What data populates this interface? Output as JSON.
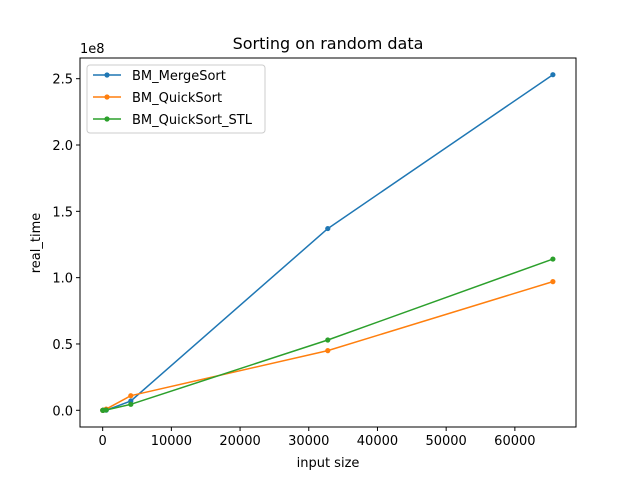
{
  "chart_data": {
    "type": "line",
    "title": "Sorting on random data",
    "xlabel": "input size",
    "ylabel": "real_time",
    "y_offset_label": "1e8",
    "xlim": [
      -3300,
      68900
    ],
    "ylim": [
      -12600000,
      265600000
    ],
    "x_ticks": [
      0,
      10000,
      20000,
      30000,
      40000,
      50000,
      60000
    ],
    "x_tick_labels": [
      "0",
      "10000",
      "20000",
      "30000",
      "40000",
      "50000",
      "60000"
    ],
    "y_ticks": [
      0,
      50000000,
      100000000,
      150000000,
      200000000,
      250000000
    ],
    "y_tick_labels": [
      "0.0",
      "0.5",
      "1.0",
      "1.5",
      "2.0",
      "2.5"
    ],
    "grid": false,
    "legend_position": "top-left",
    "series": [
      {
        "name": "BM_MergeSort",
        "color": "#1f77b4",
        "x": [
          8,
          64,
          512,
          4096,
          32768,
          65536
        ],
        "y": [
          0,
          5000,
          60000,
          7000000,
          137000000,
          253000000
        ]
      },
      {
        "name": "BM_QuickSort",
        "color": "#ff7f0e",
        "x": [
          8,
          64,
          512,
          4096,
          32768,
          65536
        ],
        "y": [
          0,
          6000,
          900000,
          11000000,
          45000000,
          97000000
        ]
      },
      {
        "name": "BM_QuickSort_STL",
        "color": "#2ca02c",
        "x": [
          8,
          64,
          512,
          4096,
          32768,
          65536
        ],
        "y": [
          0,
          4000,
          250000,
          4500000,
          53000000,
          114000000
        ]
      }
    ]
  }
}
